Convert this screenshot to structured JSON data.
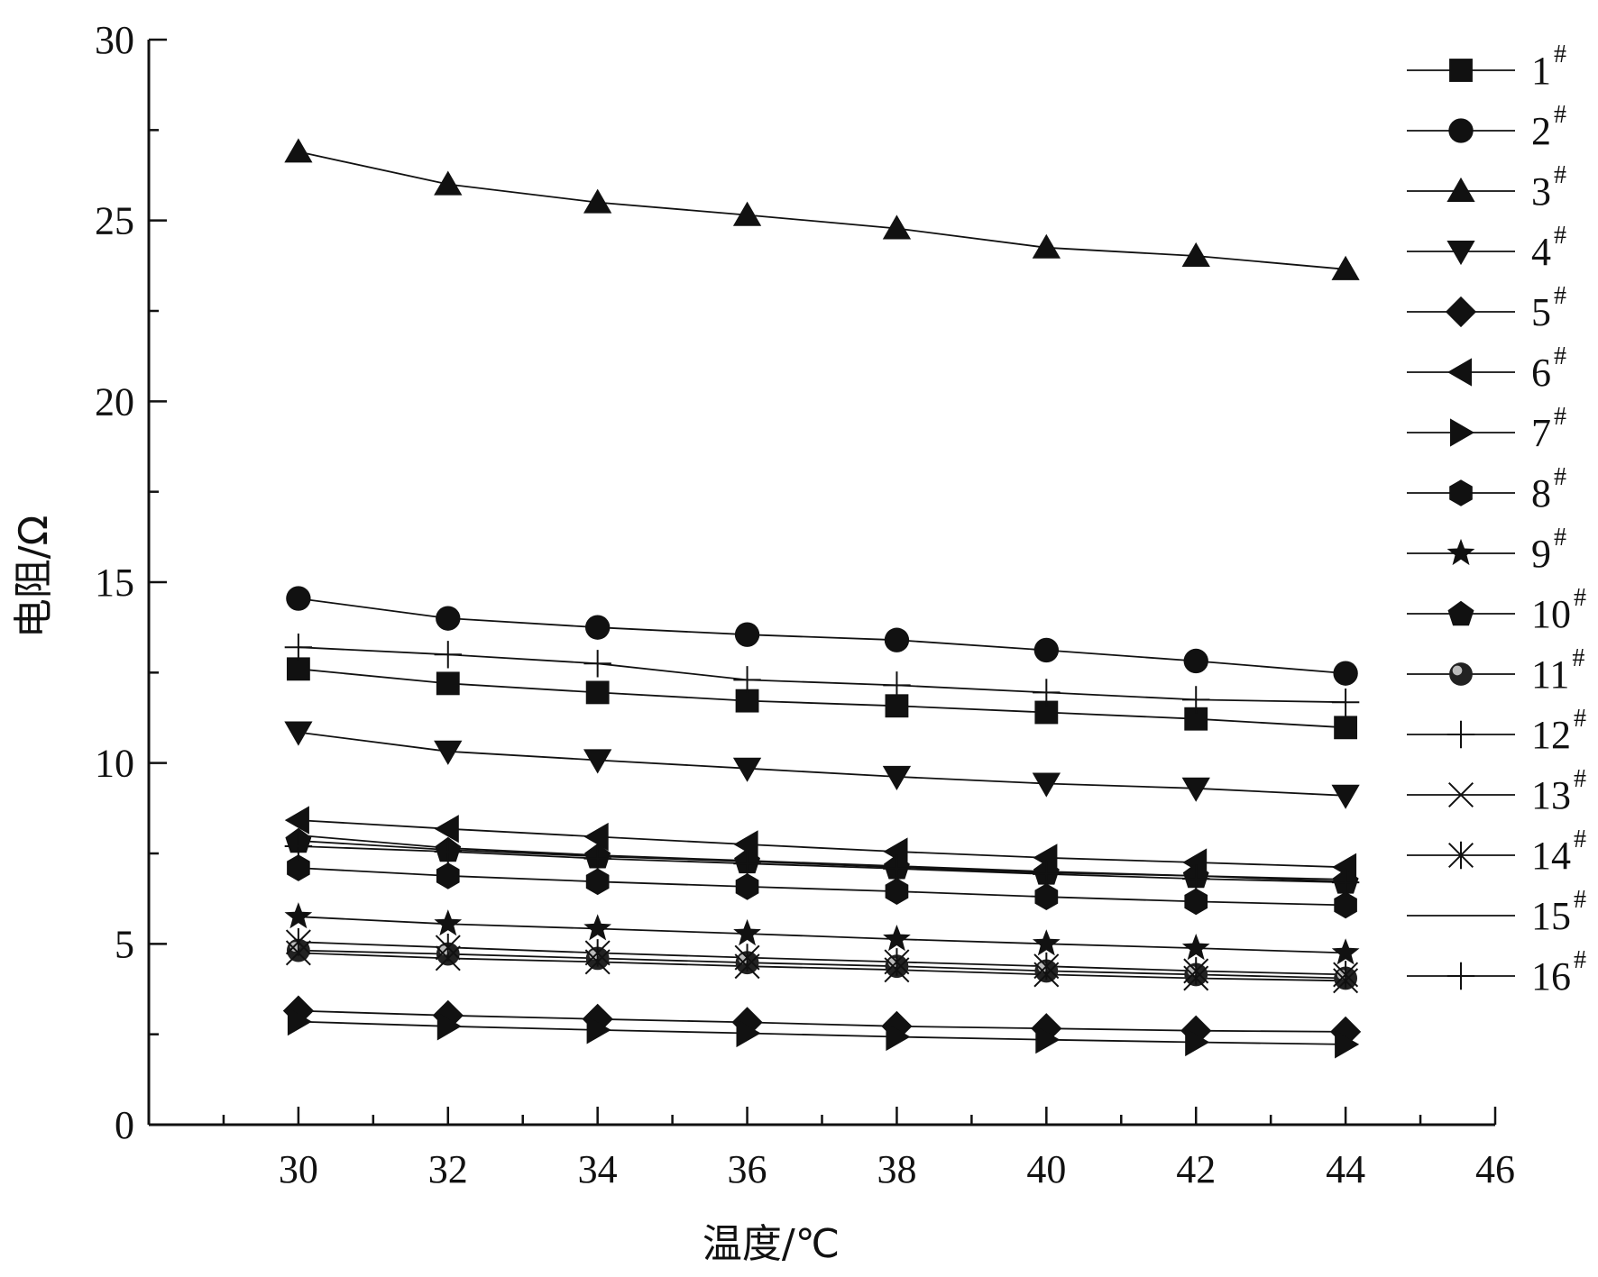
{
  "chart_data": {
    "type": "line",
    "xlabel": "温度/℃",
    "ylabel": "电阻/Ω",
    "xlim": [
      28,
      46
    ],
    "ylim": [
      0,
      30
    ],
    "x_ticks": [
      30,
      32,
      34,
      36,
      38,
      40,
      42,
      44,
      46
    ],
    "y_ticks": [
      0,
      5,
      10,
      15,
      20,
      25,
      30
    ],
    "grid": false,
    "legend_position": "right",
    "x": [
      30,
      32,
      34,
      36,
      38,
      40,
      42,
      44
    ],
    "series": [
      {
        "name": "1",
        "sup": "#",
        "marker": "square",
        "values": [
          12.6,
          12.2,
          11.95,
          11.72,
          11.58,
          11.4,
          11.22,
          10.98
        ]
      },
      {
        "name": "2",
        "sup": "#",
        "marker": "circle",
        "values": [
          14.55,
          14.0,
          13.75,
          13.55,
          13.4,
          13.12,
          12.82,
          12.48
        ]
      },
      {
        "name": "3",
        "sup": "#",
        "marker": "triangle-up",
        "values": [
          26.9,
          26.0,
          25.5,
          25.15,
          24.78,
          24.25,
          24.02,
          23.65
        ]
      },
      {
        "name": "4",
        "sup": "#",
        "marker": "triangle-down",
        "values": [
          10.85,
          10.32,
          10.08,
          9.85,
          9.62,
          9.43,
          9.3,
          9.1
        ]
      },
      {
        "name": "5",
        "sup": "#",
        "marker": "diamond",
        "values": [
          3.15,
          3.02,
          2.92,
          2.83,
          2.72,
          2.66,
          2.6,
          2.57
        ]
      },
      {
        "name": "6",
        "sup": "#",
        "marker": "triangle-left",
        "values": [
          8.42,
          8.18,
          7.96,
          7.75,
          7.55,
          7.38,
          7.25,
          7.12
        ]
      },
      {
        "name": "7",
        "sup": "#",
        "marker": "triangle-right",
        "values": [
          2.85,
          2.72,
          2.62,
          2.53,
          2.43,
          2.35,
          2.28,
          2.22
        ]
      },
      {
        "name": "8",
        "sup": "#",
        "marker": "hexagon",
        "values": [
          7.1,
          6.88,
          6.72,
          6.58,
          6.45,
          6.3,
          6.17,
          6.07
        ]
      },
      {
        "name": "9",
        "sup": "#",
        "marker": "star",
        "values": [
          5.75,
          5.55,
          5.42,
          5.28,
          5.13,
          5.0,
          4.88,
          4.75
        ]
      },
      {
        "name": "10",
        "sup": "#",
        "marker": "pentagon",
        "values": [
          7.85,
          7.6,
          7.42,
          7.28,
          7.12,
          6.97,
          6.88,
          6.72
        ]
      },
      {
        "name": "11",
        "sup": "#",
        "marker": "shaded-circle",
        "values": [
          4.82,
          4.72,
          4.6,
          4.48,
          4.38,
          4.25,
          4.15,
          4.05
        ]
      },
      {
        "name": "12",
        "sup": "#",
        "marker": "plus",
        "values": [
          13.2,
          13.0,
          12.75,
          12.3,
          12.15,
          11.95,
          11.75,
          11.68
        ]
      },
      {
        "name": "13",
        "sup": "#",
        "marker": "x",
        "values": [
          4.75,
          4.6,
          4.5,
          4.38,
          4.28,
          4.15,
          4.05,
          3.98
        ]
      },
      {
        "name": "14",
        "sup": "#",
        "marker": "asterisk",
        "values": [
          5.05,
          4.9,
          4.75,
          4.62,
          4.5,
          4.38,
          4.25,
          4.15
        ]
      },
      {
        "name": "15",
        "sup": "#",
        "marker": "none",
        "values": [
          8.0,
          7.65,
          7.45,
          7.3,
          7.15,
          7.0,
          6.88,
          6.78
        ]
      },
      {
        "name": "16",
        "sup": "#",
        "marker": "plus",
        "values": [
          7.7,
          7.55,
          7.36,
          7.22,
          7.08,
          6.93,
          6.8,
          6.7
        ]
      }
    ]
  }
}
